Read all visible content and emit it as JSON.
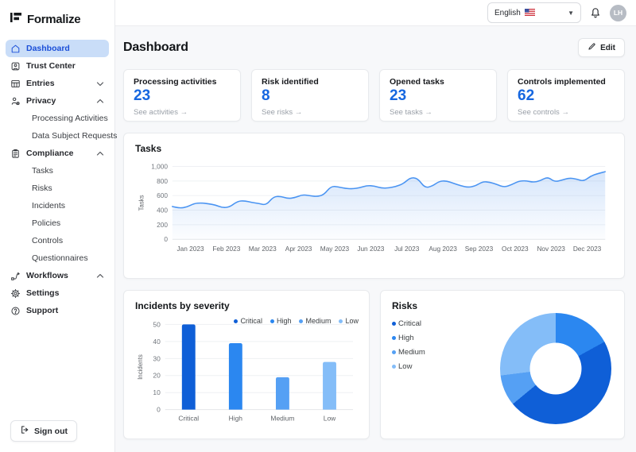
{
  "app": {
    "name": "Formalize"
  },
  "topbar": {
    "language": "English",
    "flag_icon": "us-flag",
    "avatar_initials": "LH"
  },
  "sidebar": {
    "items": [
      {
        "label": "Dashboard",
        "icon": "home",
        "active": true
      },
      {
        "label": "Trust Center",
        "icon": "badge"
      },
      {
        "label": "Entries",
        "icon": "table",
        "chevron": "down"
      },
      {
        "label": "Privacy",
        "icon": "user-gear",
        "chevron": "up"
      },
      {
        "label": "Processing Activities",
        "sub": true
      },
      {
        "label": "Data Subject Requests",
        "sub": true
      },
      {
        "label": "Compliance",
        "icon": "clipboard",
        "chevron": "up"
      },
      {
        "label": "Tasks",
        "sub": true
      },
      {
        "label": "Risks",
        "sub": true
      },
      {
        "label": "Incidents",
        "sub": true
      },
      {
        "label": "Policies",
        "sub": true
      },
      {
        "label": "Controls",
        "sub": true
      },
      {
        "label": "Questionnaires",
        "sub": true
      },
      {
        "label": "Workflows",
        "icon": "workflow",
        "chevron": "up"
      },
      {
        "label": "Settings",
        "icon": "gear"
      },
      {
        "label": "Support",
        "icon": "help"
      }
    ],
    "sign_out": "Sign out"
  },
  "header": {
    "title": "Dashboard",
    "edit_label": "Edit"
  },
  "stat_cards": [
    {
      "title": "Processing activities",
      "value": "23",
      "link": "See activities →"
    },
    {
      "title": "Risk identified",
      "value": "8",
      "link": "See risks →"
    },
    {
      "title": "Opened tasks",
      "value": "23",
      "link": "See tasks →"
    },
    {
      "title": "Controls implemented",
      "value": "62",
      "link": "See controls →"
    }
  ],
  "colors": {
    "accent": "#1667e0",
    "line": "#4a94f2",
    "area_fill": "#7fb0f2",
    "critical": "#0f5fd7",
    "high": "#2b87f0",
    "medium": "#55a0f4",
    "low": "#84bdf8",
    "active_item_bg": "#c9ddf8",
    "active_item_text": "#1b4fd8"
  },
  "chart_data": [
    {
      "type": "area",
      "title": "Tasks",
      "ylabel": "Tasks",
      "xlabel": "",
      "x_labels": [
        "Jan 2023",
        "Feb 2023",
        "Mar 2023",
        "Apr 2023",
        "May 2023",
        "Jun 2023",
        "Jul 2023",
        "Aug 2023",
        "Sep 2023",
        "Oct 2023",
        "Nov 2023",
        "Dec 2023"
      ],
      "ylim": [
        0,
        1000
      ],
      "yticks": [
        0,
        200,
        400,
        600,
        800,
        1000
      ],
      "grid": true,
      "legend_position": "none",
      "values": [
        450,
        428,
        440,
        492,
        500,
        488,
        470,
        432,
        445,
        520,
        530,
        505,
        492,
        468,
        585,
        590,
        558,
        572,
        612,
        600,
        585,
        610,
        730,
        718,
        698,
        692,
        708,
        738,
        732,
        702,
        705,
        725,
        762,
        848,
        838,
        705,
        728,
        798,
        802,
        768,
        735,
        712,
        732,
        792,
        785,
        752,
        715,
        748,
        798,
        805,
        782,
        802,
        858,
        788,
        812,
        842,
        828,
        795,
        868,
        902,
        928
      ]
    },
    {
      "type": "bar",
      "title": "Incidents by severity",
      "ylabel": "Incidents",
      "xlabel": "",
      "categories": [
        "Critical",
        "High",
        "Medium",
        "Low"
      ],
      "values": [
        50,
        39,
        19,
        28
      ],
      "colors": [
        "#0f5fd7",
        "#2b87f0",
        "#55a0f4",
        "#84bdf8"
      ],
      "ylim": [
        0,
        50
      ],
      "yticks": [
        0,
        10,
        20,
        30,
        40,
        50
      ],
      "grid": true,
      "legend": [
        "Critical",
        "High",
        "Medium",
        "Low"
      ],
      "legend_position": "top-right"
    },
    {
      "type": "donut",
      "title": "Risks",
      "legend": [
        "Critical",
        "High",
        "Medium",
        "Low"
      ],
      "legend_position": "left",
      "start_angle_deg": 0,
      "segments": [
        {
          "label": "High",
          "value": 17,
          "color": "#2b87f0"
        },
        {
          "label": "Critical",
          "value": 47,
          "color": "#0f5fd7"
        },
        {
          "label": "Medium",
          "value": 9,
          "color": "#55a0f4"
        },
        {
          "label": "Low",
          "value": 27,
          "color": "#84bdf8"
        }
      ],
      "legend_colors": {
        "Critical": "#0f5fd7",
        "High": "#2b87f0",
        "Medium": "#55a0f4",
        "Low": "#84bdf8"
      }
    }
  ]
}
